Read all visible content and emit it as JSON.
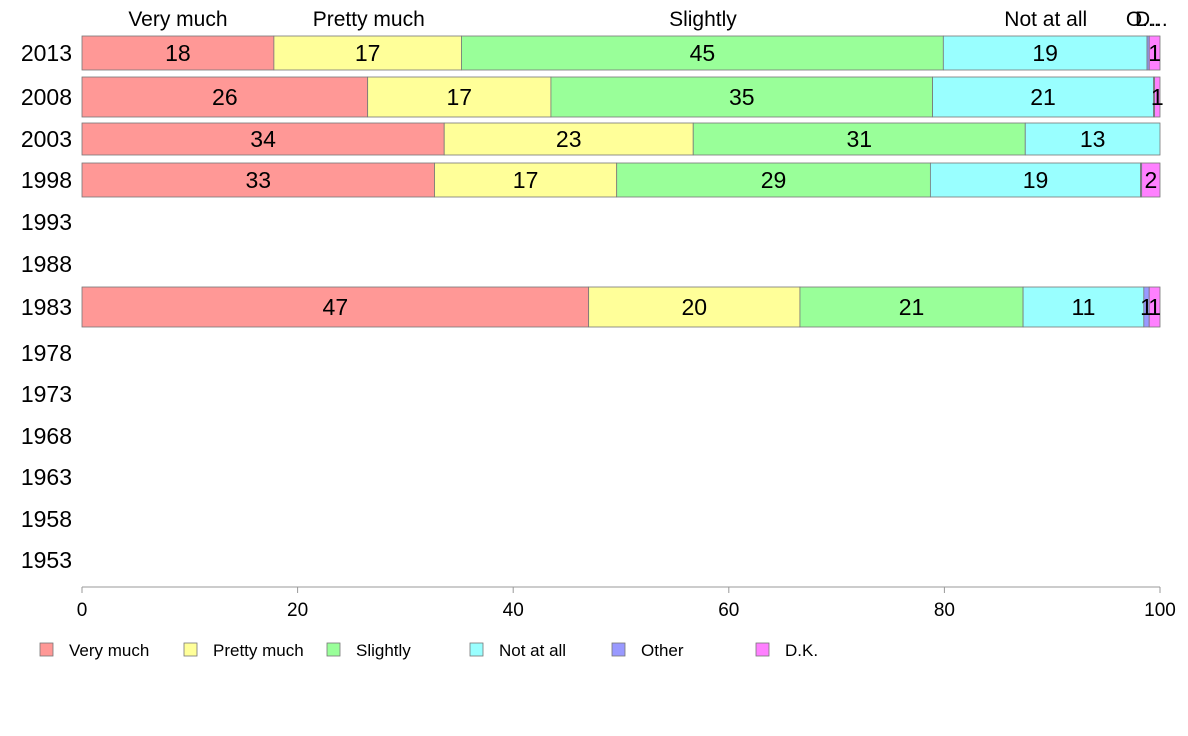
{
  "chart_data": {
    "type": "bar",
    "orientation": "horizontal",
    "stacked": true,
    "categories": [
      "2013",
      "2008",
      "2003",
      "1998",
      "1993",
      "1988",
      "1983",
      "1978",
      "1973",
      "1968",
      "1963",
      "1958",
      "1953"
    ],
    "series": [
      {
        "name": "Very much",
        "color": "#ff9896",
        "values": [
          17.8,
          26.5,
          33.6,
          32.7,
          null,
          null,
          47.0,
          null,
          null,
          null,
          null,
          null,
          null
        ]
      },
      {
        "name": "Pretty much",
        "color": "#ffff99",
        "values": [
          17.4,
          17.0,
          23.1,
          16.9,
          null,
          null,
          19.6,
          null,
          null,
          null,
          null,
          null,
          null
        ]
      },
      {
        "name": "Slightly",
        "color": "#99ff99",
        "values": [
          44.7,
          35.4,
          30.8,
          29.1,
          null,
          null,
          20.7,
          null,
          null,
          null,
          null,
          null,
          null
        ]
      },
      {
        "name": "Not at all",
        "color": "#99ffff",
        "values": [
          18.9,
          20.5,
          12.5,
          19.5,
          null,
          null,
          11.2,
          null,
          null,
          null,
          null,
          null,
          null
        ]
      },
      {
        "name": "Other",
        "color": "#9999ff",
        "values": [
          0.2,
          0.1,
          0.0,
          0.1,
          null,
          null,
          0.5,
          null,
          null,
          null,
          null,
          null,
          null
        ]
      },
      {
        "name": "D.K.",
        "color": "#ff80ff",
        "values": [
          1.0,
          0.5,
          0.0,
          1.7,
          null,
          null,
          1.0,
          null,
          null,
          null,
          null,
          null,
          null
        ]
      }
    ],
    "data_labels": [
      [
        "18",
        "17",
        "45",
        "19",
        "",
        "1"
      ],
      [
        "26",
        "17",
        "35",
        "21",
        "",
        "1"
      ],
      [
        "34",
        "23",
        "31",
        "13",
        "",
        ""
      ],
      [
        "33",
        "17",
        "29",
        "19",
        "",
        "2"
      ],
      [
        "",
        "",
        "",
        "",
        "",
        ""
      ],
      [
        "",
        "",
        "",
        "",
        "",
        ""
      ],
      [
        "47",
        "20",
        "21",
        "11",
        "1",
        "1"
      ],
      [
        "",
        "",
        "",
        "",
        "",
        ""
      ],
      [
        "",
        "",
        "",
        "",
        "",
        ""
      ],
      [
        "",
        "",
        "",
        "",
        "",
        ""
      ],
      [
        "",
        "",
        "",
        "",
        "",
        ""
      ],
      [
        "",
        "",
        "",
        "",
        "",
        ""
      ],
      [
        "",
        "",
        "",
        "",
        "",
        ""
      ]
    ],
    "top_labels": [
      {
        "text": "Very much",
        "at": 8.9
      },
      {
        "text": "Pretty much",
        "at": 26.6
      },
      {
        "text": "Slightly",
        "at": 57.6
      },
      {
        "text": "Not at all",
        "at": 89.4
      },
      {
        "text": "O...",
        "at": 98.4
      },
      {
        "text": "D...",
        "at": 99.2
      }
    ],
    "xticks": [
      0,
      20,
      40,
      60,
      80,
      100
    ],
    "xlim": [
      0,
      100
    ],
    "grid": false,
    "legend_position": "bottom",
    "title": "",
    "xlabel": "",
    "ylabel": ""
  }
}
